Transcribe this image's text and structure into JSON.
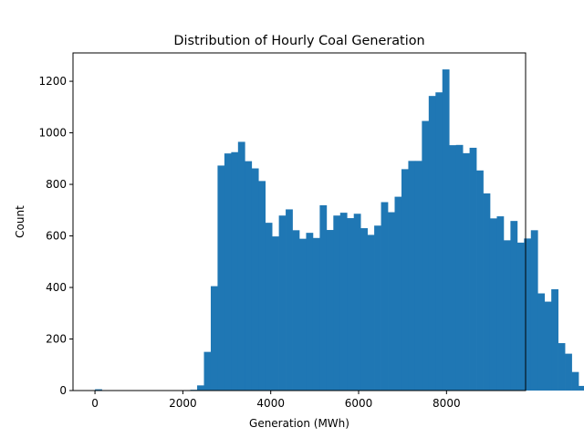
{
  "chart_data": {
    "type": "histogram",
    "title": "Distribution of Hourly Coal Generation",
    "xlabel": "Generation (MWh)",
    "ylabel": "Count",
    "xlim": [
      -500,
      9800
    ],
    "ylim": [
      0,
      1310
    ],
    "xticks": [
      0,
      2000,
      4000,
      6000,
      8000
    ],
    "xtick_labels": [
      "0",
      "2000",
      "4000",
      "6000",
      "8000"
    ],
    "yticks": [
      0,
      200,
      400,
      600,
      800,
      1000,
      1200
    ],
    "ytick_labels": [
      "0",
      "200",
      "400",
      "600",
      "800",
      "1000",
      "1200"
    ],
    "grid": false,
    "color": "#1f77b4",
    "bin_start": 0,
    "bin_width": 155,
    "counts": [
      5,
      0,
      0,
      0,
      0,
      0,
      0,
      0,
      0,
      0,
      0,
      0,
      0,
      0,
      3,
      20,
      150,
      405,
      873,
      920,
      925,
      965,
      890,
      862,
      813,
      651,
      598,
      679,
      703,
      622,
      589,
      612,
      592,
      719,
      623,
      679,
      690,
      669,
      686,
      630,
      604,
      640,
      731,
      692,
      752,
      859,
      891,
      891,
      1046,
      1143,
      1157,
      1246,
      952,
      953,
      921,
      942,
      854,
      765,
      668,
      676,
      583,
      658,
      574,
      590,
      622,
      377,
      345,
      393,
      184,
      143,
      72,
      18
    ]
  }
}
